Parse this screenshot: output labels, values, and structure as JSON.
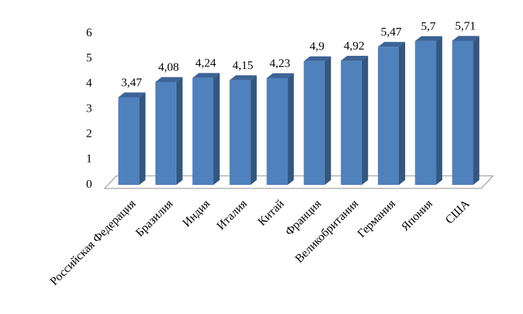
{
  "chart_data": {
    "type": "bar",
    "categories": [
      "Российская Федерация",
      "Бразилия",
      "Индия",
      "Италия",
      "Китай",
      "Франция",
      "Великобритания",
      "Германия",
      "Япония",
      "США"
    ],
    "values": [
      3.47,
      4.08,
      4.24,
      4.15,
      4.23,
      4.9,
      4.92,
      5.47,
      5.7,
      5.71
    ],
    "value_labels": [
      "3,47",
      "4,08",
      "4,24",
      "4,15",
      "4,23",
      "4,9",
      "4,92",
      "5,47",
      "5,7",
      "5,71"
    ],
    "color": "#4f81bd",
    "ylim": [
      0,
      6
    ],
    "yticks": [
      0,
      1,
      2,
      3,
      4,
      5,
      6
    ],
    "grid": false
  }
}
